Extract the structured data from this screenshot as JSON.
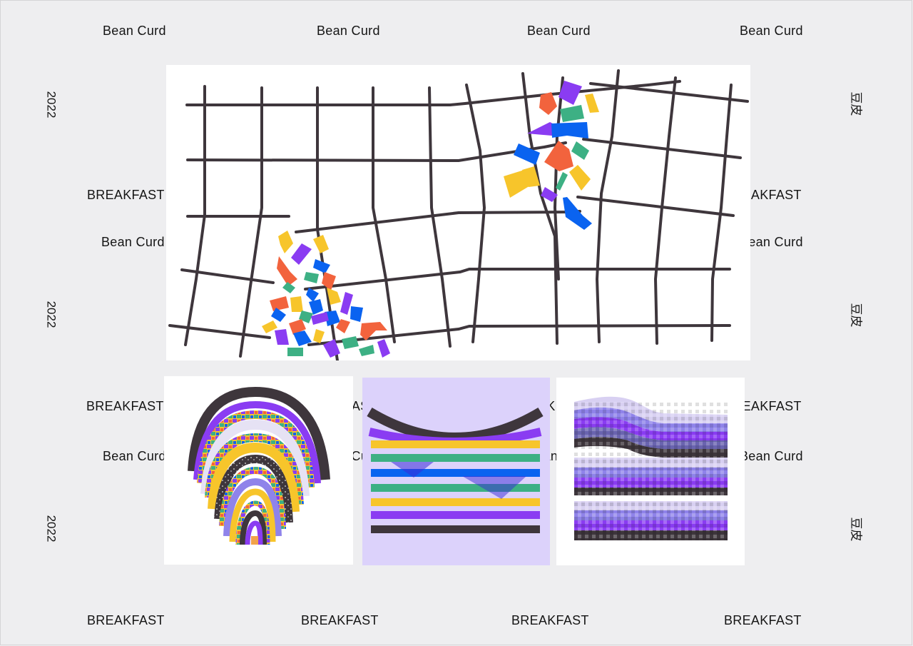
{
  "poster": {
    "colors": {
      "background": "#eeeef0",
      "grid_line": "#3e363c",
      "purple": "#8a3cf2",
      "blue": "#0a63f0",
      "green": "#3db084",
      "yellow": "#f7c52b",
      "orange": "#f2633d",
      "lavender": "#dcd2fb",
      "dark": "#3e363c"
    },
    "labels": {
      "bean_curd": "Bean Curd",
      "breakfast": "BREAKFAST",
      "year": "2022",
      "chinese": "豆皮"
    }
  }
}
